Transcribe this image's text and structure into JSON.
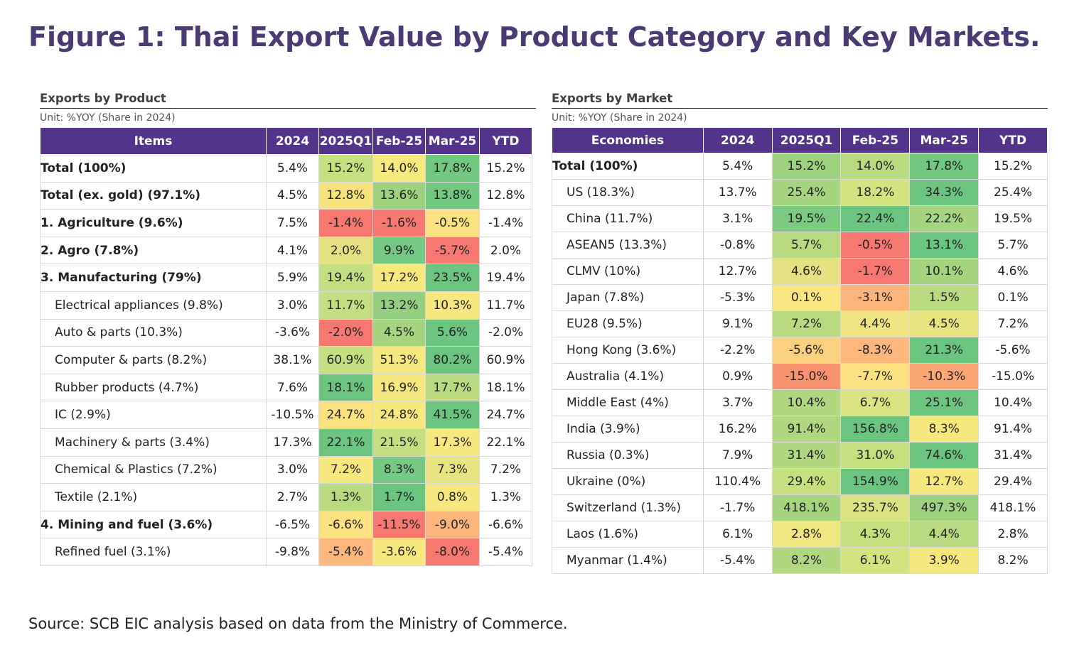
{
  "title": "Figure 1: Thai Export Value by Product Category and Key Markets.",
  "source": "Source: SCB EIC analysis based on data from the Ministry of Commerce.",
  "product": {
    "title": "Exports by Product",
    "unit": "Unit: %YOY (Share in 2024)",
    "headers": [
      "Items",
      "2024",
      "2025Q1",
      "Feb-25",
      "Mar-25",
      "YTD"
    ],
    "rows": [
      {
        "label": "Total (100%)",
        "style": "bold",
        "values": [
          "5.4%",
          "15.2%",
          "14.0%",
          "17.8%",
          "15.2%"
        ],
        "colors": [
          "#ffffff",
          "#c6df7f",
          "#f6e97e",
          "#72c87f",
          "#ffffff"
        ]
      },
      {
        "label": "Total (ex. gold) (97.1%)",
        "style": "bold",
        "values": [
          "4.5%",
          "12.8%",
          "13.6%",
          "13.8%",
          "12.8%"
        ],
        "colors": [
          "#ffffff",
          "#f7e37d",
          "#9dd37f",
          "#72c87f",
          "#ffffff"
        ]
      },
      {
        "label": "1. Agriculture (9.6%)",
        "style": "bold",
        "values": [
          "7.5%",
          "-1.4%",
          "-1.6%",
          "-0.5%",
          "-1.4%"
        ],
        "colors": [
          "#ffffff",
          "#f7786f",
          "#f7786f",
          "#fbe180",
          "#ffffff"
        ]
      },
      {
        "label": "2. Agro (7.8%)",
        "style": "bold",
        "values": [
          "4.1%",
          "2.0%",
          "9.9%",
          "-5.7%",
          "2.0%"
        ],
        "colors": [
          "#ffffff",
          "#e5e182",
          "#75c983",
          "#f7786f",
          "#ffffff"
        ]
      },
      {
        "label": "3. Manufacturing (79%)",
        "style": "bold",
        "values": [
          "5.9%",
          "19.4%",
          "17.2%",
          "23.5%",
          "19.4%"
        ],
        "colors": [
          "#ffffff",
          "#c2de81",
          "#f6e87f",
          "#6bc57e",
          "#ffffff"
        ]
      },
      {
        "label": "Electrical appliances (9.8%)",
        "style": "indent",
        "values": [
          "3.0%",
          "11.7%",
          "13.2%",
          "10.3%",
          "11.7%"
        ],
        "colors": [
          "#ffffff",
          "#c4df81",
          "#92cf7f",
          "#f6e87f",
          "#ffffff"
        ]
      },
      {
        "label": "Auto & parts (10.3%)",
        "style": "indent",
        "values": [
          "-3.6%",
          "-2.0%",
          "4.5%",
          "5.6%",
          "-2.0%"
        ],
        "colors": [
          "#ffffff",
          "#f7786f",
          "#a6d580",
          "#6bc57e",
          "#ffffff"
        ]
      },
      {
        "label": "Computer & parts (8.2%)",
        "style": "indent",
        "values": [
          "38.1%",
          "60.9%",
          "51.3%",
          "80.2%",
          "60.9%"
        ],
        "colors": [
          "#ffffff",
          "#c4df81",
          "#f6e87f",
          "#6bc57e",
          "#ffffff"
        ]
      },
      {
        "label": "Rubber products (4.7%)",
        "style": "indent",
        "values": [
          "7.6%",
          "18.1%",
          "16.9%",
          "17.7%",
          "18.1%"
        ],
        "colors": [
          "#ffffff",
          "#6bc57e",
          "#f6e87f",
          "#b8da81",
          "#ffffff"
        ]
      },
      {
        "label": "IC (2.9%)",
        "style": "indent",
        "values": [
          "-10.5%",
          "24.7%",
          "24.8%",
          "41.5%",
          "24.7%"
        ],
        "colors": [
          "#ffffff",
          "#fbe180",
          "#f6e87f",
          "#6bc57e",
          "#ffffff"
        ]
      },
      {
        "label": "Machinery & parts (3.4%)",
        "style": "indent",
        "values": [
          "17.3%",
          "22.1%",
          "21.5%",
          "17.3%",
          "22.1%"
        ],
        "colors": [
          "#ffffff",
          "#6bc57e",
          "#c2de81",
          "#f6e87f",
          "#ffffff"
        ]
      },
      {
        "label": "Chemical & Plastics (7.2%)",
        "style": "indent",
        "values": [
          "3.0%",
          "7.2%",
          "8.3%",
          "7.3%",
          "7.2%"
        ],
        "colors": [
          "#ffffff",
          "#f6e87f",
          "#75c983",
          "#e9e482",
          "#ffffff"
        ]
      },
      {
        "label": "Textile (2.1%)",
        "style": "indent",
        "values": [
          "2.7%",
          "1.3%",
          "1.7%",
          "0.8%",
          "1.3%"
        ],
        "colors": [
          "#ffffff",
          "#b8da81",
          "#6bc57e",
          "#f6e87f",
          "#ffffff"
        ]
      },
      {
        "label": "4. Mining and fuel (3.6%)",
        "style": "bold",
        "values": [
          "-6.5%",
          "-6.6%",
          "-11.5%",
          "-9.0%",
          "-6.6%"
        ],
        "colors": [
          "#ffffff",
          "#fbe180",
          "#f7786f",
          "#fbb57b",
          "#ffffff"
        ]
      },
      {
        "label": "Refined fuel (3.1%)",
        "style": "indent",
        "values": [
          "-9.8%",
          "-5.4%",
          "-3.6%",
          "-8.0%",
          "-5.4%"
        ],
        "colors": [
          "#ffffff",
          "#fcb87c",
          "#f6e87f",
          "#f7786f",
          "#ffffff"
        ]
      }
    ]
  },
  "market": {
    "title": "Exports by Market",
    "unit": "Unit: %YOY (Share in 2024)",
    "headers": [
      "Economies",
      "2024",
      "2025Q1",
      "Feb-25",
      "Mar-25",
      "YTD"
    ],
    "rows": [
      {
        "label": "Total (100%)",
        "style": "bold",
        "values": [
          "5.4%",
          "15.2%",
          "14.0%",
          "17.8%",
          "15.2%"
        ],
        "colors": [
          "#ffffff",
          "#9dd37f",
          "#b8da81",
          "#72c87f",
          "#ffffff"
        ]
      },
      {
        "label": "US (18.3%)",
        "style": "indent",
        "values": [
          "13.7%",
          "25.4%",
          "18.2%",
          "34.3%",
          "25.4%"
        ],
        "colors": [
          "#ffffff",
          "#a6d580",
          "#d4e280",
          "#6bc57e",
          "#ffffff"
        ]
      },
      {
        "label": "China (11.7%)",
        "style": "indent",
        "values": [
          "3.1%",
          "19.5%",
          "22.4%",
          "22.2%",
          "19.5%"
        ],
        "colors": [
          "#ffffff",
          "#7bca7f",
          "#6bc57e",
          "#a6d580",
          "#ffffff"
        ]
      },
      {
        "label": "ASEAN5 (13.3%)",
        "style": "indent",
        "values": [
          "-0.8%",
          "5.7%",
          "-0.5%",
          "13.1%",
          "5.7%"
        ],
        "colors": [
          "#ffffff",
          "#b8da81",
          "#f7786f",
          "#6bc57e",
          "#ffffff"
        ]
      },
      {
        "label": "CLMV (10%)",
        "style": "indent",
        "values": [
          "12.7%",
          "4.6%",
          "-1.7%",
          "10.1%",
          "4.6%"
        ],
        "colors": [
          "#ffffff",
          "#e5e182",
          "#f7786f",
          "#a6d580",
          "#ffffff"
        ]
      },
      {
        "label": "Japan (7.8%)",
        "style": "indent",
        "values": [
          "-5.3%",
          "0.1%",
          "-3.1%",
          "1.5%",
          "0.1%"
        ],
        "colors": [
          "#ffffff",
          "#fbe682",
          "#fbb57b",
          "#b8da81",
          "#ffffff"
        ]
      },
      {
        "label": "EU28 (9.5%)",
        "style": "indent",
        "values": [
          "9.1%",
          "7.2%",
          "4.4%",
          "4.5%",
          "7.2%"
        ],
        "colors": [
          "#ffffff",
          "#b8da81",
          "#efe383",
          "#e9e482",
          "#ffffff"
        ]
      },
      {
        "label": "Hong Kong (3.6%)",
        "style": "indent",
        "values": [
          "-2.2%",
          "-5.6%",
          "-8.3%",
          "21.3%",
          "-5.6%"
        ],
        "colors": [
          "#ffffff",
          "#fbd07f",
          "#fcb87c",
          "#6bc57e",
          "#ffffff"
        ]
      },
      {
        "label": "Australia (4.1%)",
        "style": "indent",
        "values": [
          "0.9%",
          "-15.0%",
          "-7.7%",
          "-10.3%",
          "-15.0%"
        ],
        "colors": [
          "#ffffff",
          "#f9926f",
          "#fbe180",
          "#fba774",
          "#ffffff"
        ]
      },
      {
        "label": "Middle East (4%)",
        "style": "indent",
        "values": [
          "3.7%",
          "10.4%",
          "6.7%",
          "25.1%",
          "10.4%"
        ],
        "colors": [
          "#ffffff",
          "#b0d880",
          "#dbe281",
          "#6bc57e",
          "#ffffff"
        ]
      },
      {
        "label": "India (3.9%)",
        "style": "indent",
        "values": [
          "16.2%",
          "91.4%",
          "156.8%",
          "8.3%",
          "91.4%"
        ],
        "colors": [
          "#ffffff",
          "#b0d880",
          "#6bc57e",
          "#f6e87f",
          "#ffffff"
        ]
      },
      {
        "label": "Russia (0.3%)",
        "style": "indent",
        "values": [
          "7.9%",
          "31.4%",
          "31.0%",
          "74.6%",
          "31.4%"
        ],
        "colors": [
          "#ffffff",
          "#b0d880",
          "#c6df7f",
          "#6bc57e",
          "#ffffff"
        ]
      },
      {
        "label": "Ukraine (0%)",
        "style": "indent",
        "values": [
          "110.4%",
          "29.4%",
          "154.9%",
          "12.7%",
          "29.4%"
        ],
        "colors": [
          "#ffffff",
          "#c6df7f",
          "#6bc57e",
          "#f6e87f",
          "#ffffff"
        ]
      },
      {
        "label": "Switzerland (1.3%)",
        "style": "indent",
        "values": [
          "-1.7%",
          "418.1%",
          "235.7%",
          "497.3%",
          "418.1%"
        ],
        "colors": [
          "#ffffff",
          "#a6d580",
          "#dbe281",
          "#9dd37f",
          "#ffffff"
        ]
      },
      {
        "label": "Laos (1.6%)",
        "style": "indent",
        "values": [
          "6.1%",
          "2.8%",
          "4.3%",
          "4.4%",
          "2.8%"
        ],
        "colors": [
          "#ffffff",
          "#f0e781",
          "#c6df7f",
          "#b8da81",
          "#ffffff"
        ]
      },
      {
        "label": "Myanmar (1.4%)",
        "style": "indent",
        "values": [
          "-5.4%",
          "8.2%",
          "6.1%",
          "3.9%",
          "8.2%"
        ],
        "colors": [
          "#ffffff",
          "#b0d880",
          "#d4e280",
          "#f6e87f",
          "#ffffff"
        ]
      }
    ]
  }
}
